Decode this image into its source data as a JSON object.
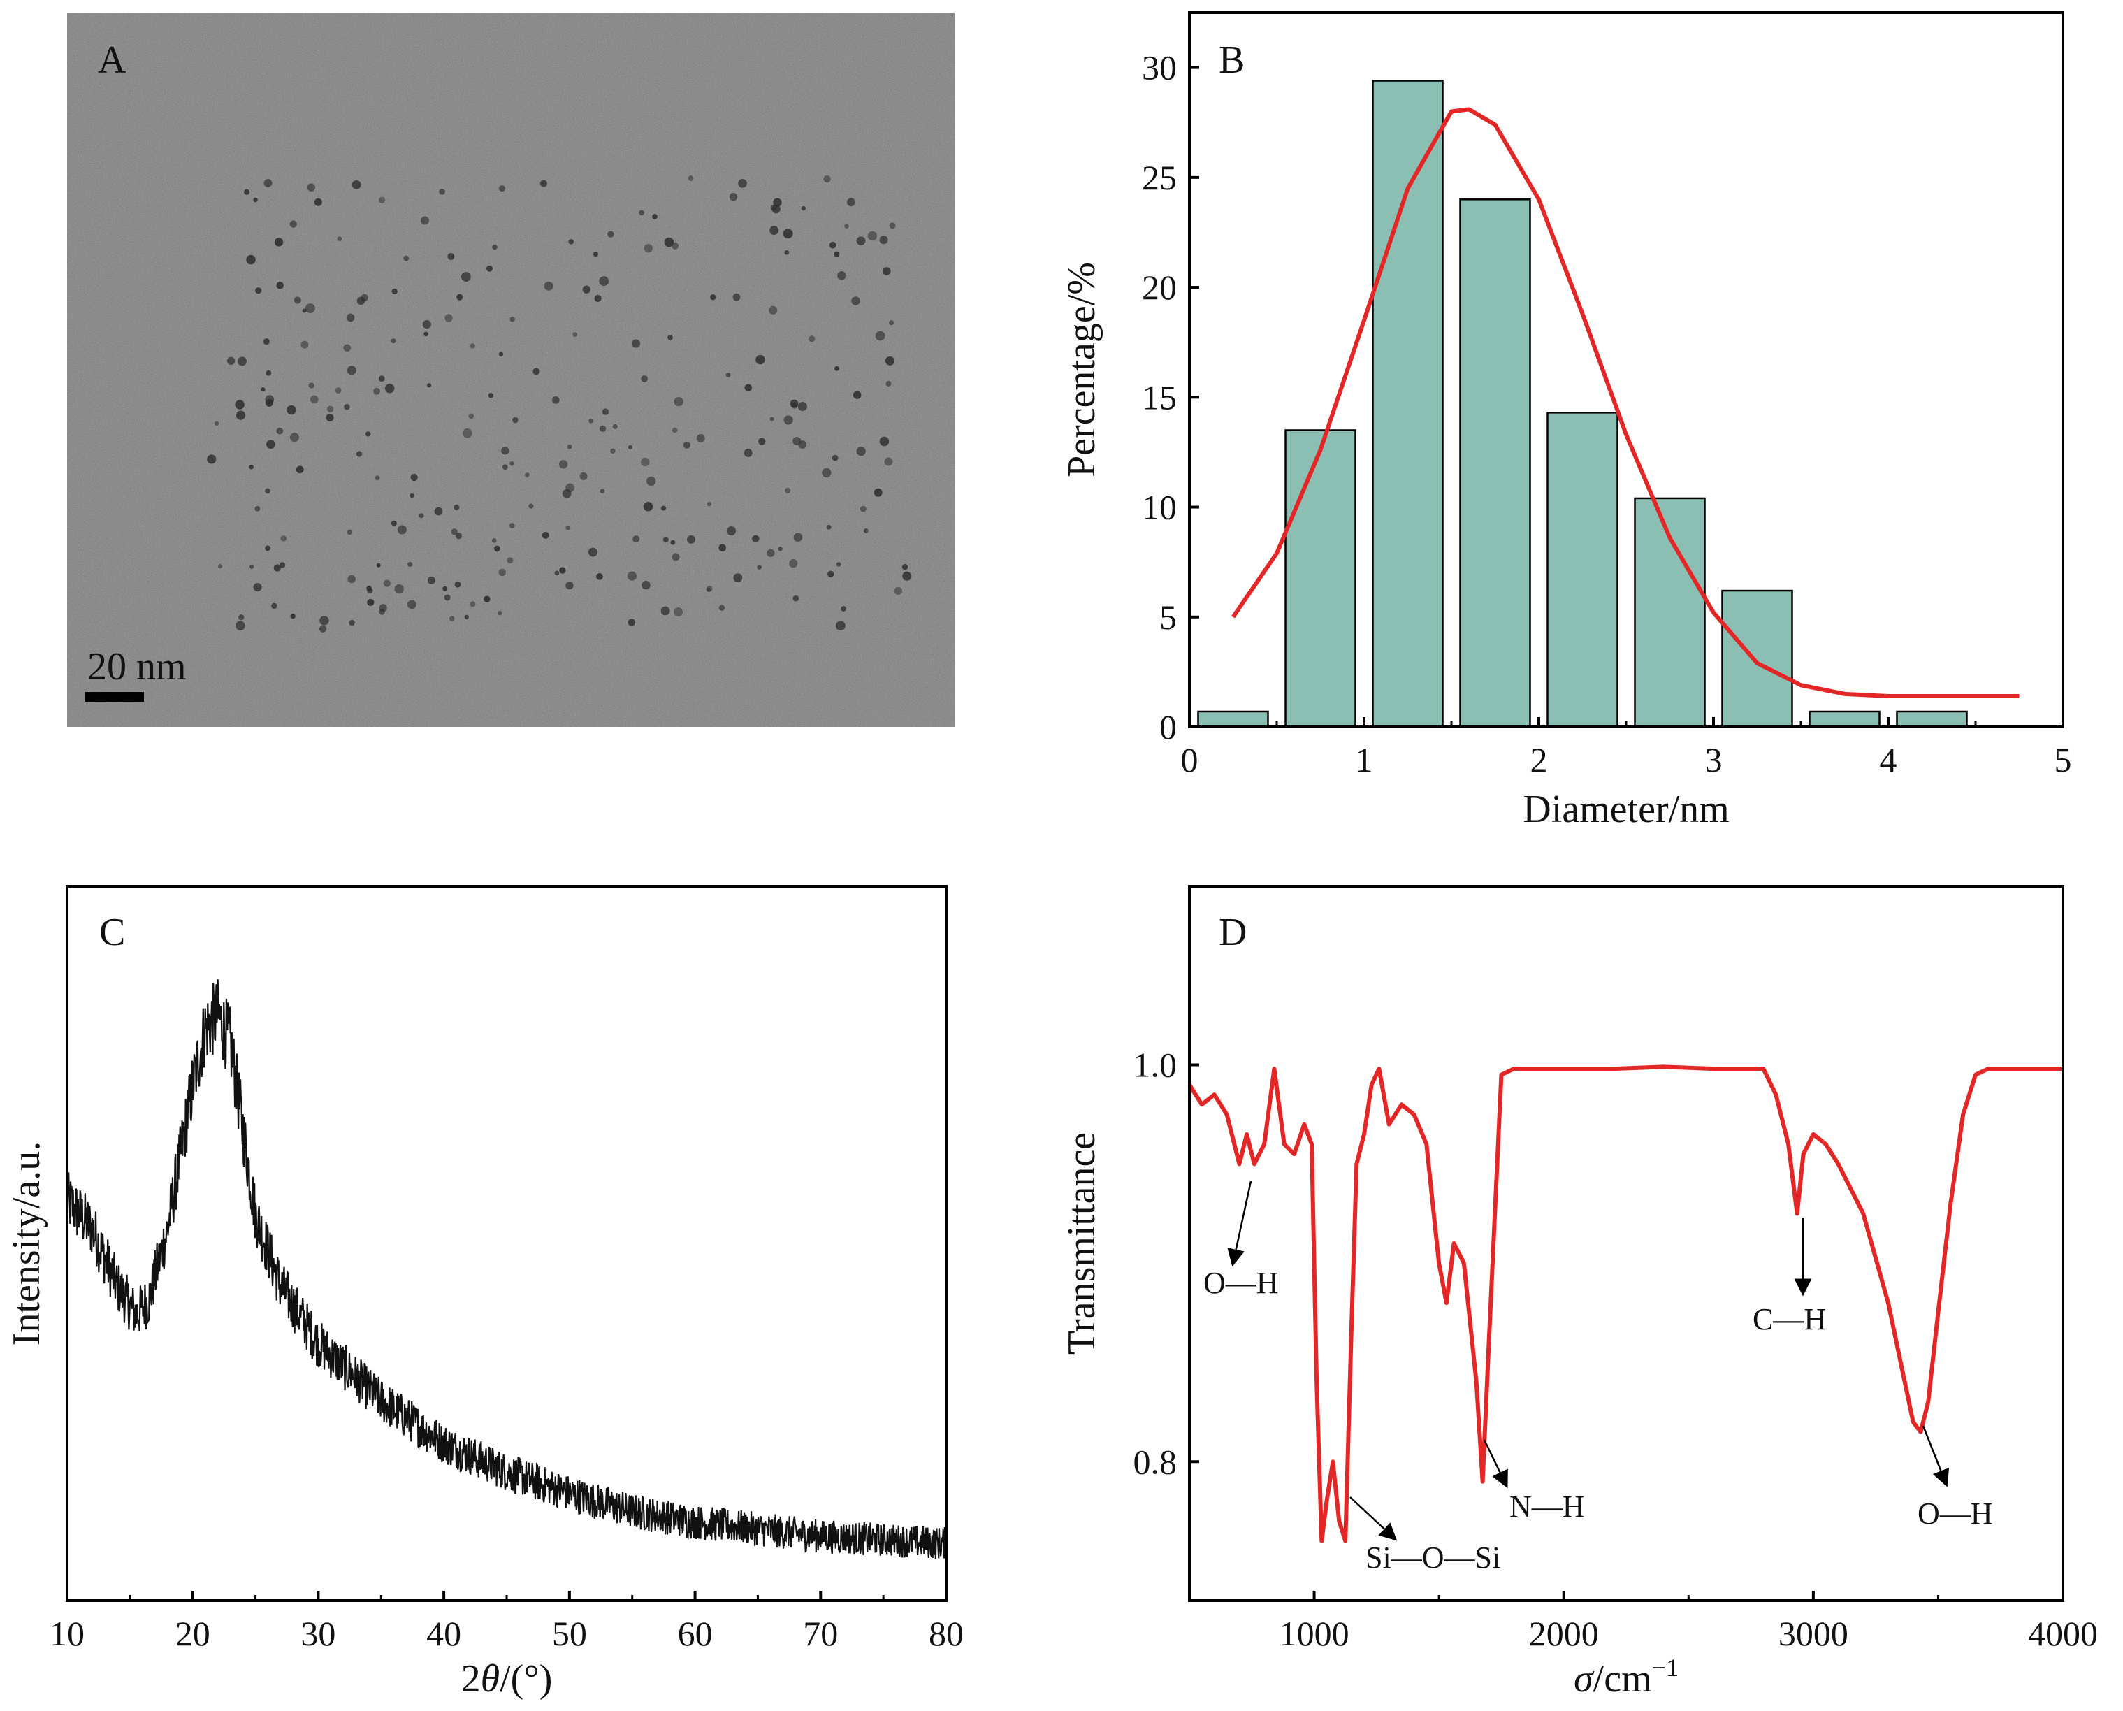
{
  "panels": {
    "A": {
      "label": "A",
      "scale_bar_text": "20 nm"
    },
    "B": {
      "label": "B",
      "xlabel": "Diameter/nm",
      "ylabel": "Percentage/%"
    },
    "C": {
      "label": "C",
      "xlabel_italic": "θ",
      "xlabel_prefix": "2",
      "xlabel_suffix": "/(°)",
      "ylabel": "Intensity/a.u."
    },
    "D": {
      "label": "D",
      "xlabel_italic": "σ",
      "xlabel_suffix": "/cm",
      "xlabel_sup": "−1",
      "ylabel": "Transmittance"
    }
  },
  "colors": {
    "bar_fill": "#8cbfb4",
    "fit_line": "#e32626",
    "xrd_line": "#111111",
    "ftir_line": "#e32626",
    "tem_background": "#7a7a7a"
  },
  "chart_data": [
    {
      "panel": "B",
      "type": "bar",
      "x": [
        0.25,
        0.75,
        1.25,
        1.75,
        2.25,
        2.75,
        3.25,
        3.75,
        4.25
      ],
      "values": [
        0.7,
        13.5,
        29.4,
        24.0,
        14.3,
        10.4,
        6.2,
        0.7,
        0.7
      ],
      "bar_width": 0.4,
      "xlabel": "Diameter/nm",
      "ylabel": "Percentage/%",
      "xlim": [
        0,
        5
      ],
      "ylim": [
        0,
        32.5
      ],
      "xticks": [
        0,
        1,
        2,
        3,
        4,
        5
      ],
      "yticks": [
        0,
        5,
        10,
        15,
        20,
        25,
        30
      ],
      "fit": {
        "type": "line",
        "x": [
          0.25,
          0.5,
          0.75,
          1.0,
          1.25,
          1.5,
          1.6,
          1.75,
          2.0,
          2.25,
          2.5,
          2.75,
          3.0,
          3.25,
          3.5,
          3.75,
          4.0,
          4.25,
          4.5,
          4.75
        ],
        "y": [
          5.0,
          7.9,
          12.6,
          18.5,
          24.5,
          28.0,
          28.1,
          27.4,
          24.0,
          18.8,
          13.3,
          8.6,
          5.2,
          2.9,
          1.9,
          1.5,
          1.4,
          1.4,
          1.4,
          1.4
        ]
      }
    },
    {
      "panel": "C",
      "type": "line",
      "xlabel": "2θ/(°)",
      "ylabel": "Intensity/a.u.",
      "xlim": [
        10,
        80
      ],
      "ylim": [
        0,
        1
      ],
      "xticks": [
        10,
        20,
        30,
        40,
        50,
        60,
        70,
        80
      ],
      "yticks": [],
      "x": [
        10,
        12,
        14,
        15.5,
        16.5,
        18,
        20,
        21,
        22,
        23,
        24,
        25,
        27,
        30,
        35,
        40,
        45,
        50,
        55,
        60,
        65,
        70,
        75,
        80
      ],
      "y": [
        0.56,
        0.52,
        0.44,
        0.4,
        0.42,
        0.52,
        0.72,
        0.8,
        0.82,
        0.78,
        0.66,
        0.54,
        0.44,
        0.36,
        0.28,
        0.22,
        0.18,
        0.15,
        0.125,
        0.11,
        0.1,
        0.09,
        0.085,
        0.08
      ],
      "noise_amplitude": 0.04
    },
    {
      "panel": "D",
      "type": "line",
      "xlabel": "σ/cm−1",
      "ylabel": "Transmittance",
      "xlim": [
        500,
        4000
      ],
      "ylim": [
        0.73,
        1.09
      ],
      "xticks": [
        1000,
        2000,
        3000,
        4000
      ],
      "yticks": [
        0.8,
        1.0
      ],
      "ytick_labels": [
        "0.8",
        "1.0"
      ],
      "x": [
        500,
        550,
        600,
        650,
        700,
        730,
        760,
        800,
        840,
        880,
        920,
        960,
        990,
        1010,
        1030,
        1050,
        1075,
        1100,
        1125,
        1150,
        1170,
        1200,
        1230,
        1260,
        1300,
        1350,
        1400,
        1450,
        1500,
        1530,
        1560,
        1600,
        1650,
        1675,
        1700,
        1750,
        1800,
        2000,
        2200,
        2400,
        2600,
        2800,
        2850,
        2900,
        2935,
        2960,
        3000,
        3050,
        3100,
        3200,
        3300,
        3350,
        3400,
        3430,
        3460,
        3500,
        3550,
        3600,
        3650,
        3700,
        4000
      ],
      "y": [
        0.99,
        0.98,
        0.985,
        0.975,
        0.95,
        0.965,
        0.95,
        0.96,
        0.998,
        0.96,
        0.955,
        0.97,
        0.96,
        0.84,
        0.76,
        0.78,
        0.8,
        0.77,
        0.76,
        0.87,
        0.95,
        0.965,
        0.99,
        0.998,
        0.97,
        0.98,
        0.975,
        0.96,
        0.9,
        0.88,
        0.91,
        0.9,
        0.84,
        0.79,
        0.86,
        0.995,
        0.998,
        0.998,
        0.998,
        0.999,
        0.998,
        0.998,
        0.985,
        0.96,
        0.925,
        0.955,
        0.965,
        0.96,
        0.95,
        0.925,
        0.88,
        0.85,
        0.82,
        0.815,
        0.83,
        0.875,
        0.93,
        0.975,
        0.995,
        0.998,
        0.998
      ]
    }
  ],
  "annotations": {
    "D": [
      {
        "text": "O—H"
      },
      {
        "text": "Si—O—Si"
      },
      {
        "text": "N—H"
      },
      {
        "text": "C—H"
      },
      {
        "text": "O—H"
      }
    ]
  }
}
